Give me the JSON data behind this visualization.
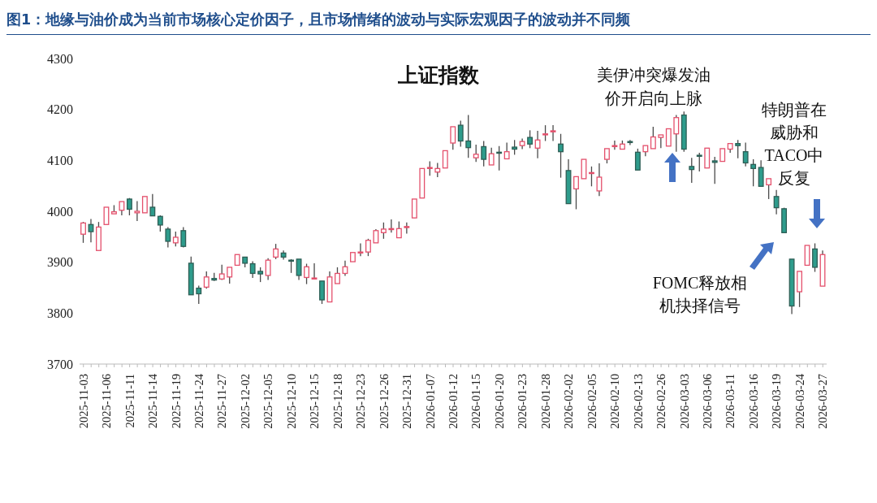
{
  "chart_data": {
    "type": "candlestick",
    "title": "图1：地缘与油价成为当前市场核心定价因子，且市场情绪的波动与实际宏观因子的波动并不同频",
    "annotations": [
      "上证指数",
      "美伊冲突爆发油价开启向上脉",
      "特朗普在威胁和TACO中反复",
      "FOMC释放相机抉择信号"
    ],
    "categories": [
      "2025-11-03",
      null,
      null,
      "2025-11-06",
      null,
      null,
      "2025-11-11",
      null,
      null,
      "2025-11-14",
      null,
      null,
      "2025-11-19",
      null,
      null,
      "2025-11-24",
      null,
      null,
      "2025-11-27",
      null,
      null,
      "2025-12-02",
      null,
      null,
      "2025-12-05",
      null,
      null,
      "2025-12-10",
      null,
      null,
      "2025-12-15",
      null,
      null,
      "2025-12-18",
      null,
      null,
      "2025-12-23",
      null,
      null,
      "2025-12-26",
      null,
      null,
      "2025-12-31",
      null,
      null,
      "2026-01-07",
      null,
      null,
      "2026-01-12",
      null,
      null,
      "2026-01-15",
      null,
      null,
      "2026-01-20",
      null,
      null,
      "2026-01-23",
      null,
      null,
      "2026-01-28",
      null,
      null,
      "2026-02-02",
      null,
      null,
      "2026-02-05",
      null,
      null,
      "2026-02-10",
      null,
      null,
      "2026-02-13",
      null,
      null,
      "2026-02-26",
      null,
      null,
      "2026-03-03",
      null,
      null,
      "2026-03-06",
      null,
      null,
      "2026-03-11",
      null,
      null,
      "2026-03-16",
      null,
      null,
      "2026-03-19",
      null,
      null,
      "2026-03-24",
      null,
      null,
      "2026-03-27"
    ],
    "ohlc": [
      [
        3955,
        3979,
        3938,
        3977
      ],
      [
        3974,
        3985,
        3939,
        3960
      ],
      [
        3923,
        3979,
        3923,
        3969
      ],
      [
        3974,
        4008,
        3974,
        4008
      ],
      [
        3995,
        4012,
        3995,
        3999
      ],
      [
        4002,
        4019,
        3992,
        4019
      ],
      [
        4024,
        4026,
        3992,
        4004
      ],
      [
        3997,
        4020,
        3981,
        4000
      ],
      [
        3997,
        4029,
        3997,
        4029
      ],
      [
        4008,
        4034,
        3991,
        3991
      ],
      [
        3990,
        3992,
        3960,
        3973
      ],
      [
        3965,
        3969,
        3929,
        3941
      ],
      [
        3938,
        3960,
        3931,
        3949
      ],
      [
        3962,
        3969,
        3929,
        3931
      ],
      [
        3898,
        3911,
        3836,
        3836
      ],
      [
        3849,
        3854,
        3818,
        3838
      ],
      [
        3851,
        3882,
        3848,
        3871
      ],
      [
        3868,
        3879,
        3863,
        3865
      ],
      [
        3867,
        3895,
        3865,
        3877
      ],
      [
        3871,
        3890,
        3858,
        3890
      ],
      [
        3894,
        3915,
        3893,
        3915
      ],
      [
        3910,
        3910,
        3890,
        3898
      ],
      [
        3897,
        3902,
        3869,
        3878
      ],
      [
        3882,
        3890,
        3861,
        3877
      ],
      [
        3874,
        3908,
        3865,
        3904
      ],
      [
        3910,
        3936,
        3906,
        3926
      ],
      [
        3918,
        3923,
        3905,
        3910
      ],
      [
        3904,
        3906,
        3879,
        3902
      ],
      [
        3906,
        3906,
        3865,
        3874
      ],
      [
        3870,
        3897,
        3857,
        3891
      ],
      [
        3867,
        3898,
        3866,
        3869
      ],
      [
        3863,
        3863,
        3818,
        3826
      ],
      [
        3822,
        3882,
        3822,
        3871
      ],
      [
        3858,
        3890,
        3858,
        3878
      ],
      [
        3878,
        3903,
        3873,
        3891
      ],
      [
        3901,
        3919,
        3901,
        3919
      ],
      [
        3919,
        3937,
        3912,
        3920
      ],
      [
        3920,
        3946,
        3912,
        3943
      ],
      [
        3938,
        3965,
        3938,
        3962
      ],
      [
        3958,
        3978,
        3946,
        3965
      ],
      [
        3964,
        3984,
        3958,
        3966
      ],
      [
        3948,
        3980,
        3948,
        3966
      ],
      [
        3968,
        3978,
        3956,
        3970
      ],
      [
        3987,
        4024,
        3987,
        4024
      ],
      [
        4026,
        4084,
        4026,
        4084
      ],
      [
        4084,
        4098,
        4070,
        4086
      ],
      [
        4077,
        4095,
        4067,
        4084
      ],
      [
        4085,
        4119,
        4085,
        4119
      ],
      [
        4134,
        4166,
        4121,
        4166
      ],
      [
        4169,
        4178,
        4127,
        4138
      ],
      [
        4138,
        4189,
        4105,
        4125
      ],
      [
        4105,
        4131,
        4097,
        4112
      ],
      [
        4127,
        4138,
        4088,
        4102
      ],
      [
        4091,
        4125,
        4091,
        4113
      ],
      [
        4116,
        4128,
        4080,
        4114
      ],
      [
        4103,
        4135,
        4103,
        4117
      ],
      [
        4126,
        4140,
        4111,
        4122
      ],
      [
        4129,
        4143,
        4122,
        4137
      ],
      [
        4145,
        4159,
        4124,
        4132
      ],
      [
        4124,
        4158,
        4104,
        4140
      ],
      [
        4151,
        4169,
        4138,
        4152
      ],
      [
        4156,
        4169,
        4138,
        4158
      ],
      [
        4132,
        4152,
        4066,
        4117
      ],
      [
        4080,
        4102,
        4015,
        4015
      ],
      [
        4044,
        4068,
        4004,
        4068
      ],
      [
        4064,
        4102,
        4064,
        4102
      ],
      [
        4075,
        4088,
        4049,
        4076
      ],
      [
        4040,
        4094,
        4030,
        4067
      ],
      [
        4102,
        4123,
        4094,
        4123
      ],
      [
        4127,
        4139,
        4121,
        4129
      ],
      [
        4122,
        4139,
        4122,
        4132
      ],
      [
        4137,
        4140,
        4130,
        4135
      ],
      [
        4116,
        4123,
        4081,
        4081
      ],
      [
        4117,
        4129,
        4108,
        4129
      ],
      [
        4123,
        4166,
        4123,
        4146
      ],
      [
        4145,
        4150,
        4124,
        4150
      ],
      [
        4128,
        4162,
        4128,
        4162
      ],
      [
        4152,
        4189,
        4117,
        4184
      ],
      [
        4189,
        4196,
        4117,
        4122
      ],
      [
        4088,
        4105,
        4056,
        4082
      ],
      [
        4110,
        4115,
        4078,
        4108
      ],
      [
        4085,
        4124,
        4085,
        4124
      ],
      [
        4099,
        4107,
        4054,
        4096
      ],
      [
        4098,
        4123,
        4098,
        4123
      ],
      [
        4122,
        4133,
        4115,
        4133
      ],
      [
        4133,
        4140,
        4104,
        4129
      ],
      [
        4117,
        4135,
        4088,
        4095
      ],
      [
        4092,
        4102,
        4049,
        4084
      ],
      [
        4086,
        4100,
        4049,
        4049
      ],
      [
        4052,
        4064,
        4024,
        4064
      ],
      [
        4029,
        4042,
        3994,
        4007
      ],
      [
        4005,
        4007,
        3958,
        3958
      ],
      [
        3906,
        3906,
        3798,
        3814
      ],
      [
        3842,
        3882,
        3812,
        3882
      ],
      [
        3894,
        3933,
        3894,
        3933
      ],
      [
        3926,
        3937,
        3881,
        3890
      ],
      [
        3853,
        3923,
        3853,
        3915
      ]
    ],
    "ylim": [
      3700,
      4300
    ],
    "yticks": [
      3700,
      3800,
      3900,
      4000,
      4100,
      4200,
      4300
    ]
  }
}
